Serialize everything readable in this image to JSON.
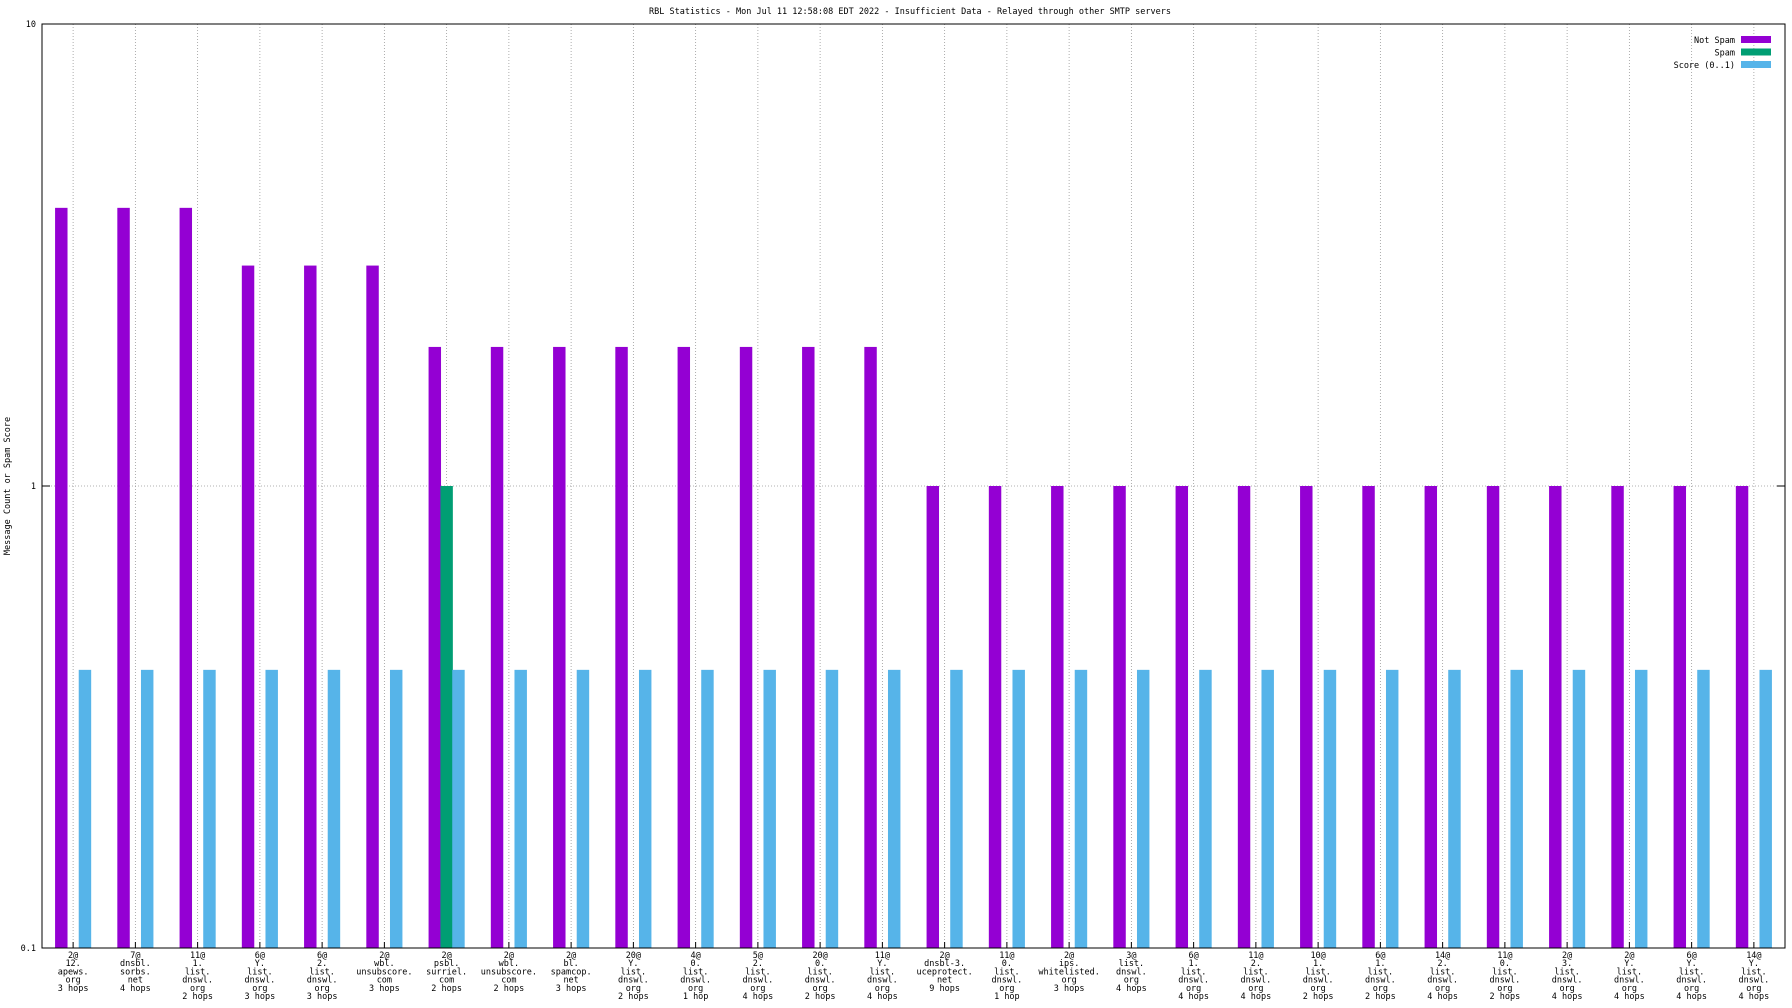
{
  "chart_data": {
    "type": "bar",
    "title": "RBL Statistics - Mon Jul 11 12:58:08 EDT 2022 - Insufficient Data - Relayed through other SMTP servers",
    "y_label": "Message Count or Spam Score",
    "log_y": true,
    "grid": true,
    "legend": "top-right",
    "ylim": [
      0.1,
      10
    ],
    "yticks": [
      0.1,
      1,
      10
    ],
    "categories": [
      [
        "2@",
        "12.",
        "apews.",
        "org",
        "3 hops"
      ],
      [
        "7@",
        "dnsbl.",
        "sorbs.",
        "net",
        "4 hops"
      ],
      [
        "11@",
        "1.",
        "list.",
        "dnswl.",
        "org",
        "2 hops"
      ],
      [
        "6@",
        "Y.",
        "list.",
        "dnswl.",
        "org",
        "3 hops"
      ],
      [
        "6@",
        "2.",
        "list.",
        "dnswl.",
        "org",
        "3 hops"
      ],
      [
        "2@",
        "wbl.",
        "unsubscore.",
        "com",
        "3 hops"
      ],
      [
        "2@",
        "psbl.",
        "surriel.",
        "com",
        "2 hops"
      ],
      [
        "2@",
        "wbl.",
        "unsubscore.",
        "com",
        "2 hops"
      ],
      [
        "2@",
        "bl.",
        "spamcop.",
        "net",
        "3 hops"
      ],
      [
        "20@",
        "Y.",
        "list.",
        "dnswl.",
        "org",
        "2 hops"
      ],
      [
        "4@",
        "0.",
        "list.",
        "dnswl.",
        "org",
        "1 hop"
      ],
      [
        "5@",
        "2.",
        "list.",
        "dnswl.",
        "org",
        "4 hops"
      ],
      [
        "20@",
        "0.",
        "list.",
        "dnswl.",
        "org",
        "2 hops"
      ],
      [
        "11@",
        "Y.",
        "list.",
        "dnswl.",
        "org",
        "4 hops"
      ],
      [
        "2@",
        "dnsbl-3.",
        "uceprotect.",
        "net",
        "9 hops"
      ],
      [
        "11@",
        "0.",
        "list.",
        "dnswl.",
        "org",
        "1 hop"
      ],
      [
        "2@",
        "ips.",
        "whitelisted.",
        "org",
        "3 hops"
      ],
      [
        "3@",
        "list.",
        "dnswl.",
        "org",
        "4 hops"
      ],
      [
        "6@",
        "1.",
        "list.",
        "dnswl.",
        "org",
        "4 hops"
      ],
      [
        "11@",
        "2.",
        "list.",
        "dnswl.",
        "org",
        "4 hops"
      ],
      [
        "10@",
        "1.",
        "list.",
        "dnswl.",
        "org",
        "2 hops"
      ],
      [
        "6@",
        "1.",
        "list.",
        "dnswl.",
        "org",
        "2 hops"
      ],
      [
        "14@",
        "2.",
        "list.",
        "dnswl.",
        "org",
        "4 hops"
      ],
      [
        "11@",
        "0.",
        "list.",
        "dnswl.",
        "org",
        "2 hops"
      ],
      [
        "2@",
        "3.",
        "list.",
        "dnswl.",
        "org",
        "4 hops"
      ],
      [
        "2@",
        "Y.",
        "list.",
        "dnswl.",
        "org",
        "4 hops"
      ],
      [
        "6@",
        "Y.",
        "list.",
        "dnswl.",
        "org",
        "4 hops"
      ],
      [
        "14@",
        "Y.",
        "list.",
        "dnswl.",
        "org",
        "4 hops"
      ]
    ],
    "series": [
      {
        "name": "Not Spam",
        "color": "#9400d3",
        "values": [
          4,
          4,
          4,
          3,
          3,
          3,
          2,
          2,
          2,
          2,
          2,
          2,
          2,
          2,
          1,
          1,
          1,
          1,
          1,
          1,
          1,
          1,
          1,
          1,
          1,
          1,
          1,
          1
        ]
      },
      {
        "name": "Spam",
        "color": "#009e73",
        "values": [
          null,
          null,
          null,
          null,
          null,
          null,
          1,
          null,
          null,
          null,
          null,
          null,
          null,
          null,
          null,
          null,
          null,
          null,
          null,
          null,
          null,
          null,
          null,
          null,
          null,
          null,
          null,
          null
        ]
      },
      {
        "name": "Score (0..1)",
        "color": "#56b4e9",
        "values": [
          0.4,
          0.4,
          0.4,
          0.4,
          0.4,
          0.4,
          0.4,
          0.4,
          0.4,
          0.4,
          0.4,
          0.4,
          0.4,
          0.4,
          0.4,
          0.4,
          0.4,
          0.4,
          0.4,
          0.4,
          0.4,
          0.4,
          0.4,
          0.4,
          0.4,
          0.4,
          0.4,
          0.4
        ]
      }
    ]
  }
}
